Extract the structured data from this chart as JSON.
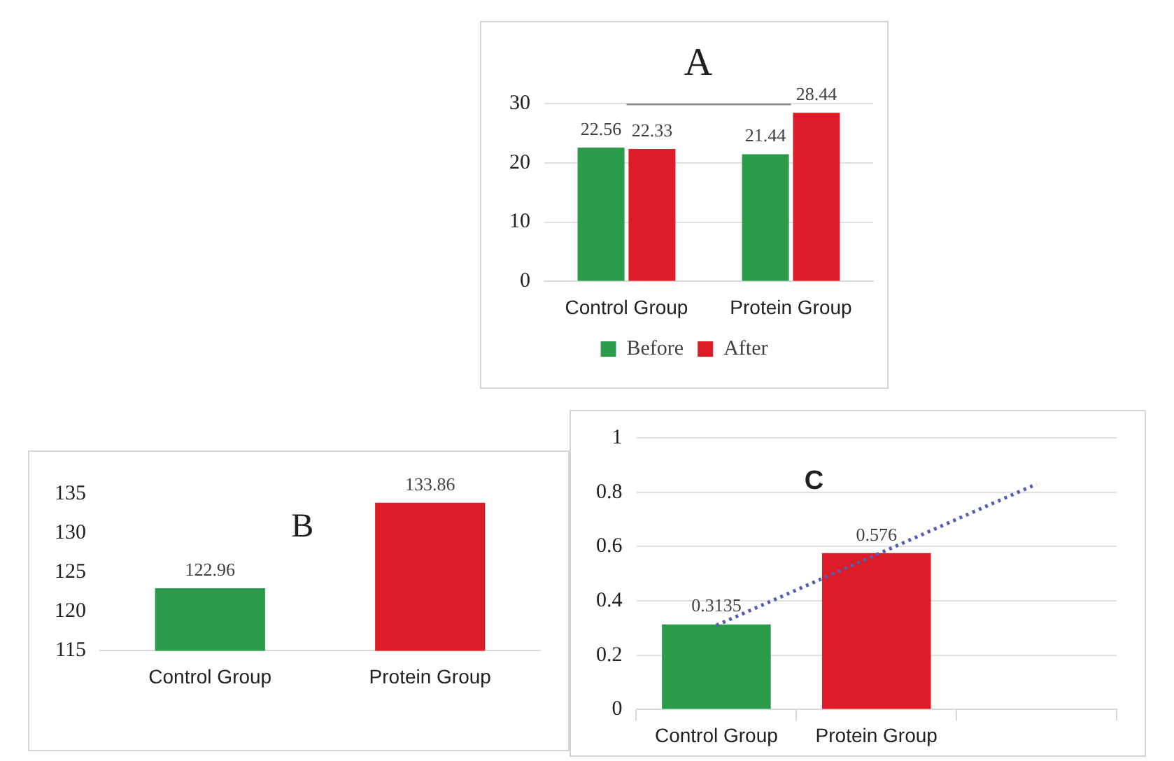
{
  "chart_data": [
    {
      "type": "bar",
      "title": "A",
      "categories": [
        "Control Group",
        "Protein Group"
      ],
      "series": [
        {
          "name": "Before",
          "color": "#2a9b48",
          "values": [
            22.56,
            21.44
          ],
          "value_labels": [
            "22.56",
            "21.44"
          ]
        },
        {
          "name": "After",
          "color": "#dc1d28",
          "values": [
            22.33,
            28.44
          ],
          "value_labels": [
            "22.33",
            "28.44"
          ]
        },
        {
          "type": "line",
          "color": "#8c8c8c",
          "values": [
            30,
            30
          ]
        }
      ],
      "ylim": [
        0,
        30
      ],
      "yticks": [
        0,
        10,
        20,
        30
      ],
      "grid": "y",
      "legend": "bottom",
      "marker": "none"
    },
    {
      "type": "bar",
      "title": "B",
      "categories": [
        "Control Group",
        "Protein Group"
      ],
      "values": [
        122.96,
        133.86
      ],
      "colors": [
        "#2a9b48",
        "#dc1d28"
      ],
      "value_labels": [
        "122.96",
        "133.86"
      ],
      "ylim": [
        115,
        135
      ],
      "yticks": [
        115,
        120,
        125,
        130,
        135
      ]
    },
    {
      "type": "bar",
      "title": "C",
      "categories": [
        "Control Group",
        "Protein Group",
        null
      ],
      "series": [
        {
          "colors": [
            "#2a9b48",
            "#dc1d28",
            "#dc1d28"
          ],
          "values": [
            0.3135,
            0.576,
            null
          ],
          "value_labels": [
            "0.3135",
            "0.576",
            null
          ]
        },
        {
          "type": "line",
          "color": "#4f5fb5",
          "line_style": "dotted",
          "values": [
            0.31,
            0.57,
            0.83
          ]
        }
      ],
      "ylim": [
        0,
        1
      ],
      "yticks": [
        0,
        0.2,
        0.4,
        0.6,
        0.8,
        1
      ],
      "grid": "y",
      "marker": "none"
    }
  ]
}
